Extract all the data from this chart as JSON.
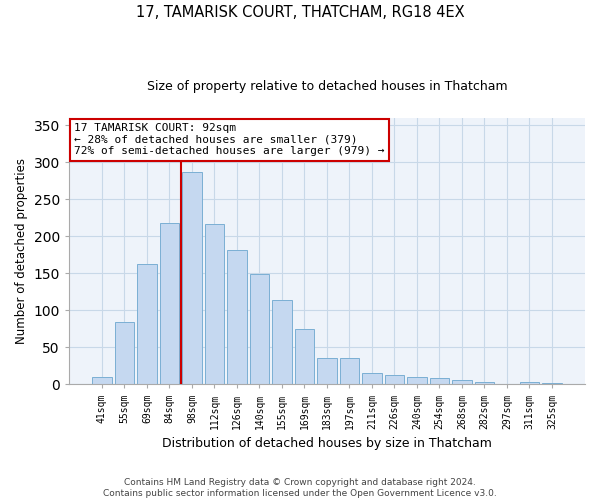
{
  "title1": "17, TAMARISK COURT, THATCHAM, RG18 4EX",
  "title2": "Size of property relative to detached houses in Thatcham",
  "xlabel": "Distribution of detached houses by size in Thatcham",
  "ylabel": "Number of detached properties",
  "categories": [
    "41sqm",
    "55sqm",
    "69sqm",
    "84sqm",
    "98sqm",
    "112sqm",
    "126sqm",
    "140sqm",
    "155sqm",
    "169sqm",
    "183sqm",
    "197sqm",
    "211sqm",
    "226sqm",
    "240sqm",
    "254sqm",
    "268sqm",
    "282sqm",
    "297sqm",
    "311sqm",
    "325sqm"
  ],
  "values": [
    10,
    84,
    162,
    218,
    287,
    217,
    181,
    149,
    114,
    75,
    35,
    35,
    16,
    13,
    10,
    8,
    6,
    3,
    1,
    3,
    2
  ],
  "bar_color": "#c5d8f0",
  "bar_edge_color": "#7bafd4",
  "grid_color": "#c8d8e8",
  "background_color": "#eef3fa",
  "vline_color": "#cc0000",
  "annotation_text": "17 TAMARISK COURT: 92sqm\n← 28% of detached houses are smaller (379)\n72% of semi-detached houses are larger (979) →",
  "annotation_box_color": "#ffffff",
  "annotation_box_edge": "#cc0000",
  "footer1": "Contains HM Land Registry data © Crown copyright and database right 2024.",
  "footer2": "Contains public sector information licensed under the Open Government Licence v3.0.",
  "ylim": [
    0,
    360
  ],
  "yticks": [
    0,
    50,
    100,
    150,
    200,
    250,
    300,
    350
  ]
}
